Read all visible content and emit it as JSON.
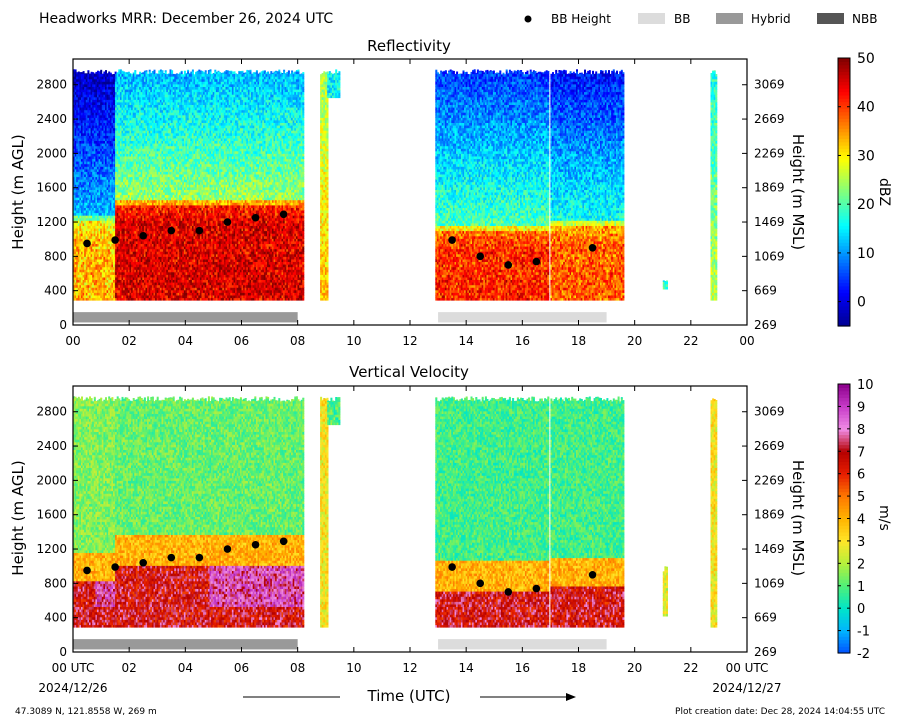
{
  "header": {
    "title": "Headworks MRR:  December 26, 2024 UTC",
    "legend": [
      {
        "label": "BB Height",
        "kind": "dot",
        "color": "#000000"
      },
      {
        "label": "BB",
        "kind": "box",
        "color": "#dcdcdc"
      },
      {
        "label": "Hybrid",
        "kind": "box",
        "color": "#999999"
      },
      {
        "label": "NBB",
        "kind": "box",
        "color": "#555555"
      }
    ]
  },
  "footer": {
    "location": "47.3089 N, 121.8558 W, 269 m",
    "creation": "Plot creation date: Dec 28, 2024 14:04:55 UTC",
    "xlabel": "Time (UTC)",
    "start_label": [
      "00 UTC",
      "2024/12/26"
    ],
    "end_label": [
      "00 UTC",
      "2024/12/27"
    ]
  },
  "chart_data": [
    {
      "type": "heatmap",
      "title": "Reflectivity",
      "ylabel": "Height (m AGL)",
      "y2label": "Height (m MSL)",
      "colorbar_label": "dBZ",
      "colorbar_range": [
        -5,
        50
      ],
      "colorbar_ticks": [
        "50",
        "40",
        "30",
        "20",
        "10",
        "0"
      ],
      "colorbar_tick_values": [
        50,
        40,
        30,
        20,
        10,
        0
      ],
      "colormap": [
        "#00008f",
        "#0000ff",
        "#007fff",
        "#00ffff",
        "#7fff7f",
        "#ffff00",
        "#ff7f00",
        "#ff0000",
        "#800000"
      ],
      "xlim": [
        0,
        24
      ],
      "ylim": [
        0,
        3100
      ],
      "xticks": [
        "00",
        "02",
        "04",
        "06",
        "08",
        "10",
        "12",
        "14",
        "16",
        "18",
        "20",
        "22",
        "00"
      ],
      "xtick_values": [
        0,
        2,
        4,
        6,
        8,
        10,
        12,
        14,
        16,
        18,
        20,
        22,
        24
      ],
      "yticks": [
        "0",
        "400",
        "800",
        "1200",
        "1600",
        "2000",
        "2400",
        "2800"
      ],
      "ytick_values": [
        0,
        400,
        800,
        1200,
        1600,
        2000,
        2400,
        2800
      ],
      "y2ticks": [
        "269",
        "669",
        "1069",
        "1469",
        "1869",
        "2269",
        "2669",
        "3069"
      ],
      "bb_height": {
        "x": [
          0.5,
          1.5,
          2.5,
          3.5,
          4.5,
          5.5,
          6.5,
          7.5,
          13.5,
          14.5,
          15.5,
          16.5,
          18.5
        ],
        "y": [
          950,
          990,
          1040,
          1100,
          1100,
          1200,
          1250,
          1290,
          990,
          800,
          700,
          740,
          900
        ]
      },
      "bb_bars": [
        {
          "start": 0.0,
          "end": 8.0,
          "category": "Hybrid"
        },
        {
          "start": 13.0,
          "end": 19.0,
          "category": "BB"
        }
      ],
      "echo_segments": [
        {
          "start": 0.0,
          "end": 1.5,
          "top": 2980,
          "base": 290,
          "value": 12,
          "bb": 960
        },
        {
          "start": 1.5,
          "end": 8.2,
          "top": 2980,
          "base": 290,
          "value": 24,
          "bb": 1150
        },
        {
          "start": 8.8,
          "end": 9.05,
          "top": 2980,
          "base": 290,
          "value": 33,
          "bb": 0
        },
        {
          "start": 9.05,
          "end": 9.5,
          "top": 2980,
          "base": 2650,
          "value": 16,
          "bb": 0
        },
        {
          "start": 12.9,
          "end": 16.9,
          "top": 2980,
          "base": 290,
          "value": 20,
          "bb": 850
        },
        {
          "start": 17.0,
          "end": 19.6,
          "top": 2980,
          "base": 290,
          "value": 17,
          "bb": 900
        },
        {
          "start": 21.0,
          "end": 21.15,
          "top": 560,
          "base": 420,
          "value": 18,
          "bb": 0
        },
        {
          "start": 22.7,
          "end": 22.9,
          "top": 2980,
          "base": 290,
          "value": 26,
          "bb": 0
        }
      ]
    },
    {
      "type": "heatmap",
      "title": "Vertical Velocity",
      "ylabel": "Height (m AGL)",
      "y2label": "Height (m MSL)",
      "colorbar_label": "m/s",
      "colorbar_range": [
        -2,
        10
      ],
      "colorbar_ticks": [
        "10",
        "9",
        "8",
        "7",
        "6",
        "5",
        "4",
        "3",
        "2",
        "1",
        "0",
        "-1",
        "-2"
      ],
      "colorbar_tick_values": [
        10,
        9,
        8,
        7,
        6,
        5,
        4,
        3,
        2,
        1,
        0,
        -1,
        -2
      ],
      "colormap": [
        "#0050ff",
        "#00b4ff",
        "#00e6c8",
        "#50f078",
        "#b4f03c",
        "#ffe628",
        "#ffb400",
        "#ff7800",
        "#e61e00",
        "#b40000",
        "#f08ce6",
        "#c83cc8",
        "#8c008c"
      ],
      "xlim": [
        0,
        24
      ],
      "ylim": [
        0,
        3100
      ],
      "xticks": [
        "00 UTC",
        "02",
        "04",
        "06",
        "08",
        "10",
        "12",
        "14",
        "16",
        "18",
        "20",
        "22",
        "00 UTC"
      ],
      "xtick_values": [
        0,
        2,
        4,
        6,
        8,
        10,
        12,
        14,
        16,
        18,
        20,
        22,
        24
      ],
      "yticks": [
        "0",
        "400",
        "800",
        "1200",
        "1600",
        "2000",
        "2400",
        "2800"
      ],
      "ytick_values": [
        0,
        400,
        800,
        1200,
        1600,
        2000,
        2400,
        2800
      ],
      "y2ticks": [
        "269",
        "669",
        "1069",
        "1469",
        "1869",
        "2269",
        "2669",
        "3069"
      ],
      "bb_height": {
        "x": [
          0.5,
          1.5,
          2.5,
          3.5,
          4.5,
          5.5,
          6.5,
          7.5,
          13.5,
          14.5,
          15.5,
          16.5,
          18.5
        ],
        "y": [
          950,
          990,
          1040,
          1100,
          1100,
          1200,
          1250,
          1290,
          990,
          800,
          700,
          740,
          900
        ]
      },
      "bb_bars": [
        {
          "start": 0.0,
          "end": 8.0,
          "category": "Hybrid"
        },
        {
          "start": 13.0,
          "end": 19.0,
          "category": "BB"
        }
      ],
      "echo_segments": [
        {
          "start": 0.0,
          "end": 1.5,
          "top": 2980,
          "base": 290,
          "value": 1.5,
          "bb": 960
        },
        {
          "start": 1.5,
          "end": 8.2,
          "top": 2980,
          "base": 290,
          "value": 1.2,
          "bb": 1150
        },
        {
          "start": 8.8,
          "end": 9.05,
          "top": 2980,
          "base": 290,
          "value": 3.0,
          "bb": 0
        },
        {
          "start": 9.05,
          "end": 9.5,
          "top": 2980,
          "base": 2650,
          "value": 1.0,
          "bb": 0
        },
        {
          "start": 12.9,
          "end": 16.9,
          "top": 2980,
          "base": 290,
          "value": 0.8,
          "bb": 850
        },
        {
          "start": 17.0,
          "end": 19.6,
          "top": 2980,
          "base": 290,
          "value": 0.8,
          "bb": 900
        },
        {
          "start": 21.0,
          "end": 21.15,
          "top": 1000,
          "base": 420,
          "value": 2.5,
          "bb": 0
        },
        {
          "start": 22.7,
          "end": 22.9,
          "top": 2980,
          "base": 290,
          "value": 3.0,
          "bb": 0
        }
      ]
    }
  ]
}
